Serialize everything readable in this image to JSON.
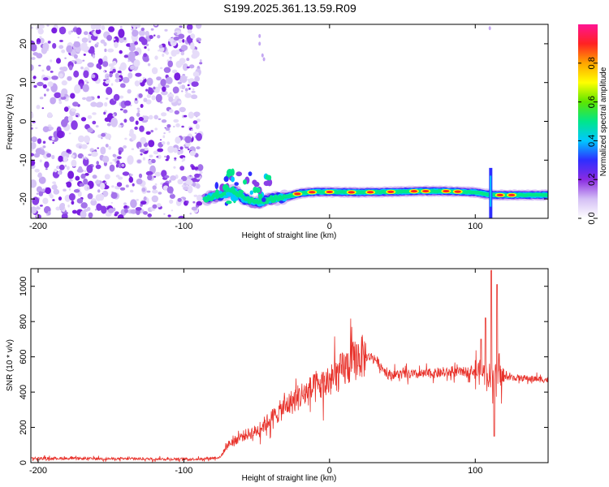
{
  "title": "S199.2025.361.13.59.R09",
  "spectrogram": {
    "xlabel": "Height of straight line (km)",
    "ylabel": "Frequency (Hz)",
    "xlim": [
      -205,
      150
    ],
    "ylim": [
      -25,
      25
    ],
    "xticks": [
      -200,
      -100,
      0,
      100
    ],
    "yticks": [
      20,
      10,
      0,
      -10,
      -20
    ],
    "noise_region_x": [
      -205,
      -88
    ],
    "band_track": [
      [
        -86,
        -20
      ],
      [
        -75,
        -19
      ],
      [
        -66,
        -18
      ],
      [
        -58,
        -20
      ],
      [
        -50,
        -21
      ],
      [
        -40,
        -20
      ],
      [
        -30,
        -19.5
      ],
      [
        -20,
        -18.5
      ],
      [
        -10,
        -18.2
      ],
      [
        0,
        -18.2
      ],
      [
        20,
        -18.3
      ],
      [
        40,
        -18.2
      ],
      [
        60,
        -18.0
      ],
      [
        80,
        -18.0
      ],
      [
        100,
        -18.3
      ],
      [
        108,
        -18.8
      ],
      [
        115,
        -19.0
      ],
      [
        150,
        -19.0
      ]
    ]
  },
  "colorbar": {
    "label": "Normalized spectral amplitude",
    "ticks": [
      "0.0",
      "0.2",
      "0.4",
      "0.6",
      "0.8"
    ],
    "range": [
      0,
      1
    ],
    "colors": [
      "#ffffff",
      "#d4bff5",
      "#8a2be2",
      "#2e2eff",
      "#00c8ff",
      "#00e68a",
      "#5ce600",
      "#ffff00",
      "#ffa500",
      "#ff2222",
      "#ff1493"
    ]
  },
  "chart_data": {
    "type": "line",
    "title": "S199.2025.361.13.59.R09",
    "xlabel": "Height of straight line (km)",
    "ylabel": "SNR (10 * v/v)",
    "xlim": [
      -205,
      150
    ],
    "ylim": [
      0,
      1100
    ],
    "xticks": [
      -200,
      -100,
      0,
      100
    ],
    "yticks": [
      0,
      200,
      400,
      600,
      800,
      1000
    ],
    "series": [
      {
        "name": "SNR",
        "color": "#e8312a",
        "trend": [
          [
            -205,
            25
          ],
          [
            -150,
            22
          ],
          [
            -90,
            20
          ],
          [
            -75,
            30
          ],
          [
            -70,
            100
          ],
          [
            -60,
            150
          ],
          [
            -50,
            180
          ],
          [
            -40,
            250
          ],
          [
            -30,
            320
          ],
          [
            -20,
            380
          ],
          [
            -10,
            420
          ],
          [
            0,
            460
          ],
          [
            10,
            530
          ],
          [
            20,
            600
          ],
          [
            30,
            600
          ],
          [
            40,
            500
          ],
          [
            60,
            500
          ],
          [
            80,
            510
          ],
          [
            100,
            520
          ],
          [
            108,
            500
          ],
          [
            115,
            490
          ],
          [
            130,
            480
          ],
          [
            150,
            470
          ]
        ],
        "peaks": [
          [
            111,
            1090
          ],
          [
            113,
            150
          ],
          [
            115,
            1010
          ],
          [
            107,
            820
          ],
          [
            104,
            700
          ]
        ]
      }
    ]
  }
}
